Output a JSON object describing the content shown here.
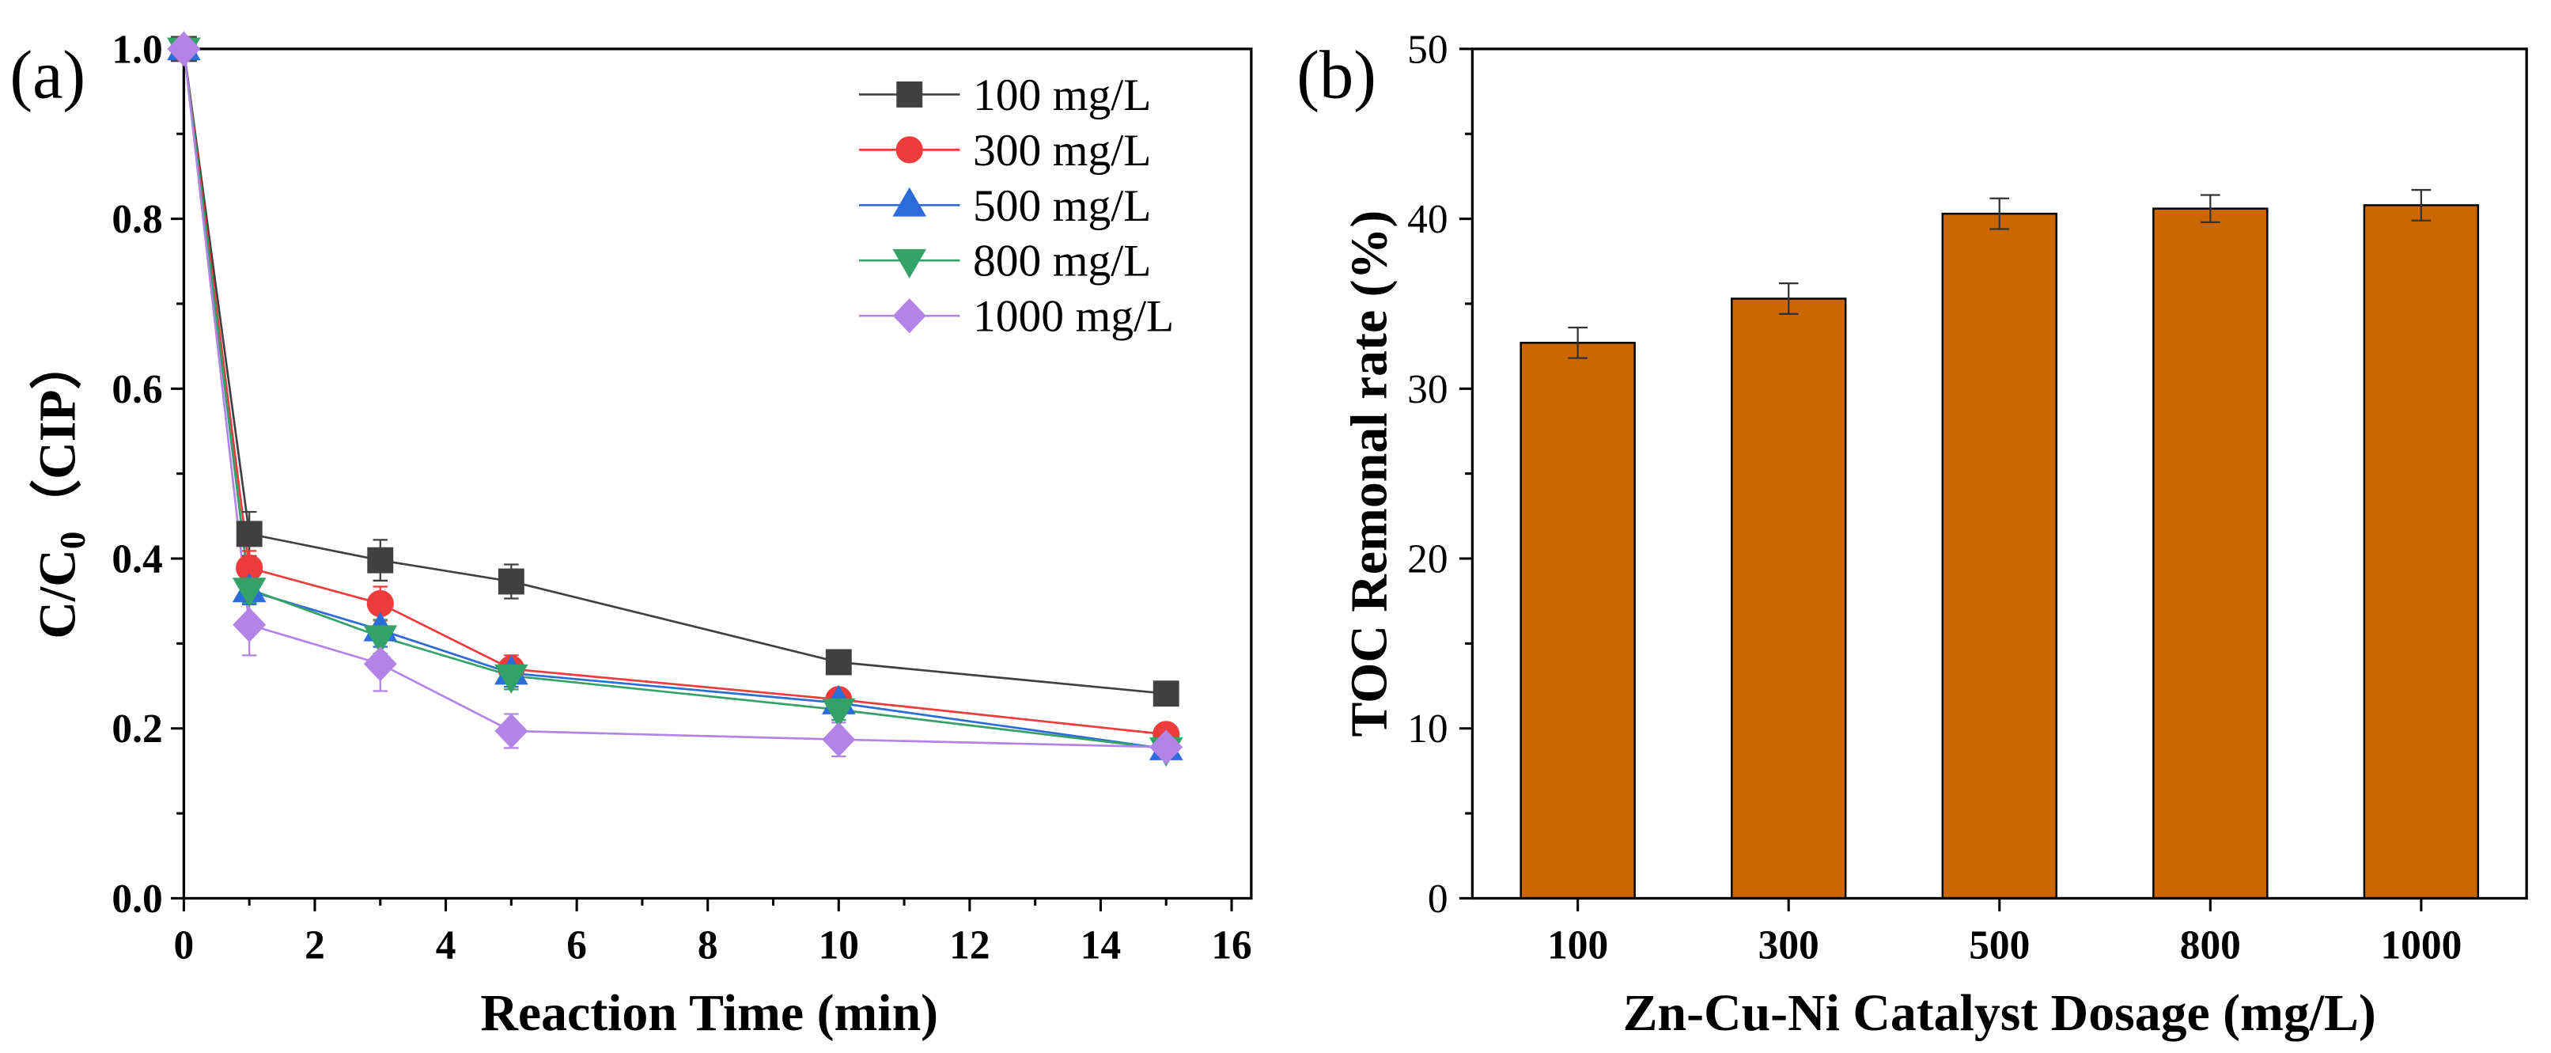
{
  "chart_data": [
    {
      "panel_label": "(a)",
      "type": "line",
      "xlabel": "Reaction Time (min)",
      "ylabel": {
        "main": "C/C",
        "subscript": "0",
        "suffix": "（CIP）"
      },
      "xlim": [
        0,
        16.3
      ],
      "ylim": [
        0,
        1.0
      ],
      "xticks": [
        0,
        2,
        4,
        6,
        8,
        10,
        12,
        14,
        16
      ],
      "xtick_labels": [
        "0",
        "2",
        "4",
        "6",
        "8",
        "10",
        "12",
        "14",
        "16"
      ],
      "yticks": [
        0,
        0.2,
        0.4,
        0.6,
        0.8,
        1.0
      ],
      "ytick_labels": [
        "0.0",
        "0.2",
        "0.4",
        "0.6",
        "0.8",
        "1.0"
      ],
      "grid": false,
      "legend": "top-right",
      "series": [
        {
          "name": "100 mg/L",
          "marker": "square",
          "color": "#404040",
          "x": [
            0,
            1,
            3,
            5,
            10,
            15
          ],
          "y": [
            1.0,
            0.429,
            0.398,
            0.373,
            0.278,
            0.241
          ],
          "yerr": [
            0,
            0.026,
            0.024,
            0.02,
            0.012,
            0.01
          ]
        },
        {
          "name": "300 mg/L",
          "marker": "circle",
          "color": "#EE3B3B",
          "x": [
            0,
            1,
            3,
            5,
            10,
            15
          ],
          "y": [
            1.0,
            0.389,
            0.347,
            0.27,
            0.234,
            0.193
          ],
          "yerr": [
            0,
            0.02,
            0.02,
            0.016,
            0.012,
            0.01
          ]
        },
        {
          "name": "500 mg/L",
          "marker": "triangle-up",
          "color": "#2B6CD9",
          "x": [
            0,
            1,
            3,
            5,
            10,
            15
          ],
          "y": [
            1.0,
            0.362,
            0.316,
            0.265,
            0.23,
            0.176
          ],
          "yerr": [
            0,
            0.016,
            0.02,
            0.016,
            0.014,
            0.012
          ]
        },
        {
          "name": "800 mg/L",
          "marker": "triangle-down",
          "color": "#34A266",
          "x": [
            0,
            1,
            3,
            5,
            10,
            15
          ],
          "y": [
            1.0,
            0.364,
            0.308,
            0.262,
            0.222,
            0.176
          ],
          "yerr": [
            0,
            0.016,
            0.02,
            0.016,
            0.012,
            0.012
          ]
        },
        {
          "name": "1000 mg/L",
          "marker": "diamond",
          "color": "#B383E6",
          "x": [
            0,
            1,
            3,
            5,
            10,
            15
          ],
          "y": [
            1.0,
            0.322,
            0.276,
            0.197,
            0.187,
            0.178
          ],
          "yerr": [
            0,
            0.036,
            0.032,
            0.02,
            0.02,
            0.012
          ]
        }
      ]
    },
    {
      "panel_label": "(b)",
      "type": "bar",
      "xlabel": "Zn-Cu-Ni Catalyst Dosage (mg/L)",
      "ylabel": "TOC Remonal rate (%)",
      "categories": [
        "100",
        "300",
        "500",
        "800",
        "1000"
      ],
      "values": [
        32.7,
        35.3,
        40.3,
        40.6,
        40.8
      ],
      "errors": [
        0.9,
        0.9,
        0.9,
        0.8,
        0.9
      ],
      "ylim": [
        0,
        50
      ],
      "yticks": [
        0,
        10,
        20,
        30,
        40,
        50
      ],
      "ytick_labels": [
        "0",
        "10",
        "20",
        "30",
        "40",
        "50"
      ],
      "grid": false,
      "bar_color": "#CC6600"
    }
  ]
}
